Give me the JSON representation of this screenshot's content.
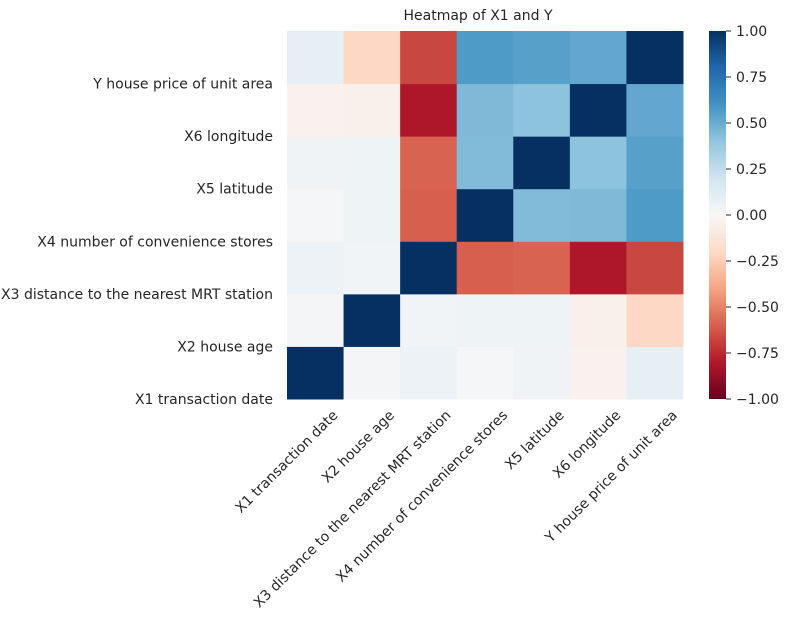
{
  "chart_data": {
    "type": "heatmap",
    "title": "Heatmap of X1 and Y",
    "x_labels": [
      "X1 transaction date",
      "X2 house age",
      "X3 distance to the nearest MRT station",
      "X4 number of convenience stores",
      "X5 latitude",
      "X6 longitude",
      "Y house price of unit area"
    ],
    "y_labels": [
      "X1 transaction date",
      "X2 house age",
      "X3 distance to the nearest MRT station",
      "X4 number of convenience stores",
      "X5 latitude",
      "X6 longitude",
      "Y house price of unit area"
    ],
    "values": [
      [
        1.0,
        0.02,
        0.06,
        0.01,
        0.04,
        -0.04,
        0.09
      ],
      [
        0.02,
        1.0,
        0.03,
        0.05,
        0.05,
        -0.05,
        -0.21
      ],
      [
        0.06,
        0.03,
        1.0,
        -0.6,
        -0.59,
        -0.81,
        -0.67
      ],
      [
        0.01,
        0.05,
        -0.6,
        1.0,
        0.44,
        0.45,
        0.57
      ],
      [
        0.04,
        0.05,
        -0.59,
        0.44,
        1.0,
        0.41,
        0.55
      ],
      [
        -0.04,
        -0.05,
        -0.81,
        0.45,
        0.41,
        1.0,
        0.52
      ],
      [
        0.09,
        -0.21,
        -0.67,
        0.57,
        0.55,
        0.52,
        1.0
      ]
    ],
    "colorbar": {
      "range": [
        -1.0,
        1.0
      ],
      "ticks": [
        "1.00",
        "0.75",
        "0.50",
        "0.25",
        "0.00",
        "−0.25",
        "−0.50",
        "−0.75",
        "−1.00"
      ],
      "tick_values": [
        1.0,
        0.75,
        0.5,
        0.25,
        0.0,
        -0.25,
        -0.5,
        -0.75,
        -1.0
      ],
      "colormap": "RdBu"
    },
    "grid": false
  }
}
